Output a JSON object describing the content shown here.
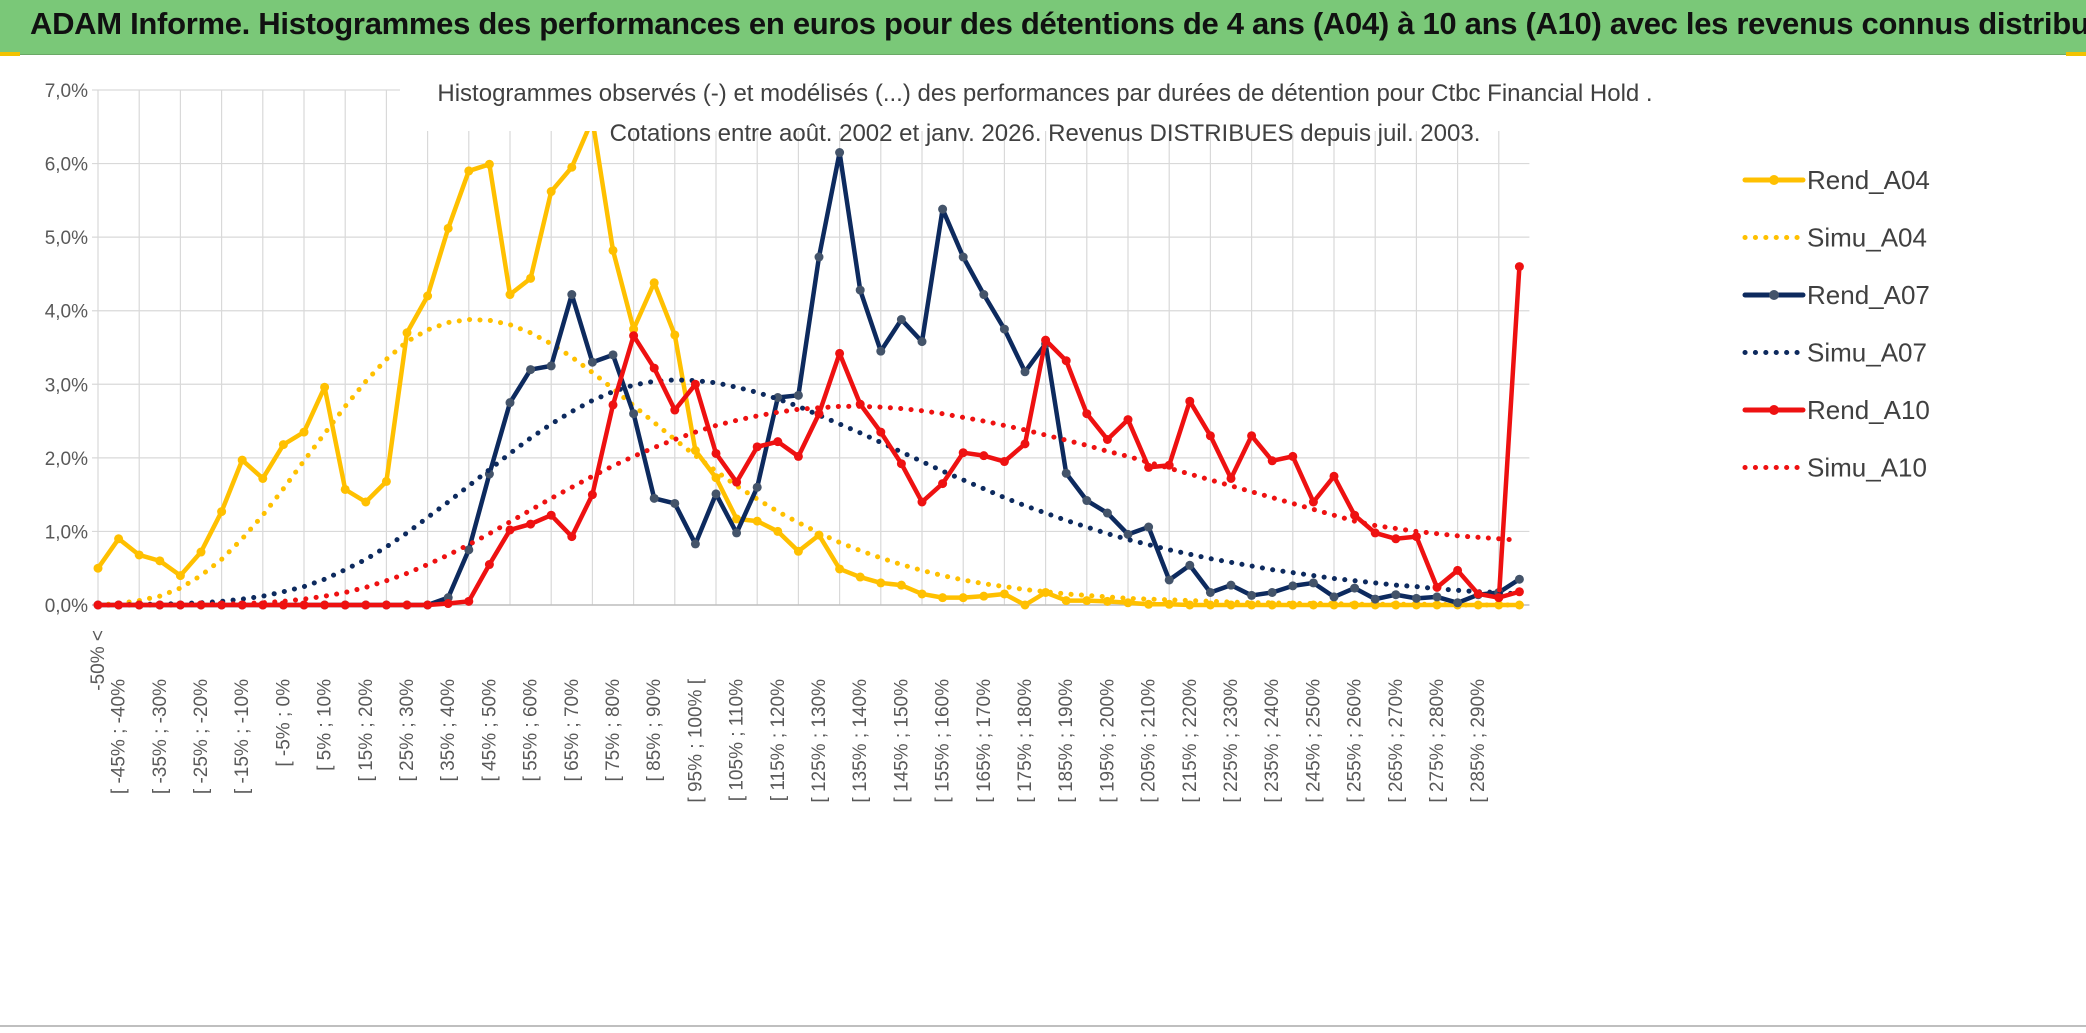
{
  "banner": {
    "title": "ADAM Informe. Histogrammes des performances en euros pour des détentions de 4 ans (A04) à 10 ans (A10) avec les revenus connus distribués"
  },
  "chart_data": {
    "type": "line",
    "title_line1": "Histogrammes observés (-) et modélisés (...) des performances par durées de détention pour Ctbc Financial Hold .",
    "title_line2": "Cotations entre août. 2002 et janv. 2026. Revenus DISTRIBUES depuis juil. 2003.",
    "ylim": [
      0,
      7
    ],
    "yticks": [
      "0,0%",
      "1,0%",
      "2,0%",
      "3,0%",
      "4,0%",
      "5,0%",
      "6,0%",
      "7,0%"
    ],
    "xtick_labels": [
      "-50% <",
      "[ -45% ; -40%",
      "[ -35% ; -30%",
      "[ -25% ; -20%",
      "[ -15% ; -10%",
      "[ -5% ; 0%",
      "[ 5% ; 10%",
      "[ 15% ; 20%",
      "[ 25% ; 30%",
      "[ 35% ; 40%",
      "[ 45% ; 50%",
      "[ 55% ; 60%",
      "[ 65% ; 70%",
      "[ 75% ; 80%",
      "[ 85% ; 90%",
      "[ 95% ; 100% [",
      "[ 105% ; 110%",
      "[ 115% ; 120%",
      "[ 125% ; 130%",
      "[ 135% ; 140%",
      "[ 145% ; 150%",
      "[ 155% ; 160%",
      "[ 165% ; 170%",
      "[ 175% ; 180%",
      "[ 185% ; 190%",
      "[ 195% ; 200%",
      "[ 205% ; 210%",
      "[ 215% ; 220%",
      "[ 225% ; 230%",
      "[ 235% ; 240%",
      "[ 245% ; 250%",
      "[ 255% ; 260%",
      "[ 265% ; 270%",
      "[ 275% ; 280%",
      "[ 285% ; 290%"
    ],
    "n_points": 70,
    "series": [
      {
        "name": "Rend_A04",
        "color": "#FFC000",
        "style": "solid",
        "markers": true,
        "values": [
          0.5,
          0.9,
          0.68,
          0.6,
          0.4,
          0.72,
          1.27,
          1.97,
          1.72,
          2.18,
          2.35,
          2.96,
          1.57,
          1.4,
          1.68,
          3.7,
          4.2,
          5.12,
          5.9,
          5.99,
          4.22,
          4.44,
          5.62,
          5.95,
          6.6,
          4.82,
          3.75,
          4.38,
          3.67,
          2.1,
          1.73,
          1.17,
          1.14,
          1.0,
          0.73,
          0.95,
          0.49,
          0.38,
          0.3,
          0.27,
          0.15,
          0.1,
          0.1,
          0.12,
          0.15,
          0.0,
          0.17,
          0.06,
          0.06,
          0.05,
          0.03,
          0.01,
          0.01,
          0.0,
          0.0,
          0.0,
          0.0,
          0.0,
          0.0,
          0.0,
          0.0,
          0.0,
          0.0,
          0.0,
          0.0,
          0.0,
          0.0,
          0.0,
          0.0,
          0.0
        ]
      },
      {
        "name": "Simu_A04",
        "color": "#FFC000",
        "style": "dotted",
        "markers": false,
        "values": [
          0.0,
          0.02,
          0.06,
          0.12,
          0.23,
          0.4,
          0.62,
          0.9,
          1.22,
          1.58,
          1.96,
          2.33,
          2.7,
          3.04,
          3.34,
          3.58,
          3.74,
          3.84,
          3.88,
          3.87,
          3.81,
          3.7,
          3.55,
          3.37,
          3.16,
          2.94,
          2.71,
          2.48,
          2.25,
          2.03,
          1.82,
          1.62,
          1.44,
          1.27,
          1.12,
          0.98,
          0.85,
          0.74,
          0.64,
          0.55,
          0.47,
          0.4,
          0.34,
          0.29,
          0.25,
          0.21,
          0.18,
          0.15,
          0.13,
          0.11,
          0.09,
          0.08,
          0.07,
          0.06,
          0.05,
          0.04,
          0.03,
          0.03,
          0.02,
          0.02,
          0.02,
          0.01,
          0.01,
          0.01,
          0.01,
          0.01,
          0.0,
          0.0,
          0.0,
          0.0
        ]
      },
      {
        "name": "Rend_A07",
        "color": "#0D2A5E",
        "style": "solid",
        "markers": true,
        "values": [
          0.0,
          0.0,
          0.0,
          0.0,
          0.0,
          0.0,
          0.0,
          0.0,
          0.0,
          0.0,
          0.0,
          0.0,
          0.0,
          0.0,
          0.0,
          0.0,
          0.0,
          0.1,
          0.75,
          1.78,
          2.75,
          3.2,
          3.25,
          4.22,
          3.3,
          3.4,
          2.6,
          1.45,
          1.38,
          0.83,
          1.51,
          0.98,
          1.6,
          2.82,
          2.85,
          4.73,
          6.15,
          4.28,
          3.45,
          3.88,
          3.58,
          5.38,
          4.73,
          4.22,
          3.75,
          3.17,
          3.55,
          1.79,
          1.42,
          1.25,
          0.96,
          1.06,
          0.34,
          0.54,
          0.17,
          0.27,
          0.13,
          0.17,
          0.26,
          0.3,
          0.11,
          0.23,
          0.08,
          0.14,
          0.09,
          0.11,
          0.03,
          0.14,
          0.17,
          0.35
        ]
      },
      {
        "name": "Simu_A07",
        "color": "#0D2A5E",
        "style": "dotted",
        "markers": false,
        "values": [
          0.0,
          0.0,
          0.01,
          0.01,
          0.02,
          0.03,
          0.05,
          0.08,
          0.12,
          0.18,
          0.25,
          0.35,
          0.48,
          0.62,
          0.79,
          0.98,
          1.19,
          1.4,
          1.62,
          1.84,
          2.06,
          2.27,
          2.46,
          2.63,
          2.78,
          2.9,
          2.99,
          3.04,
          3.06,
          3.05,
          3.02,
          2.96,
          2.89,
          2.8,
          2.7,
          2.58,
          2.46,
          2.34,
          2.21,
          2.08,
          1.95,
          1.82,
          1.7,
          1.58,
          1.46,
          1.35,
          1.25,
          1.15,
          1.06,
          0.97,
          0.89,
          0.82,
          0.75,
          0.69,
          0.63,
          0.58,
          0.53,
          0.48,
          0.44,
          0.4,
          0.36,
          0.33,
          0.3,
          0.27,
          0.25,
          0.22,
          0.2,
          0.18,
          0.17,
          0.15
        ]
      },
      {
        "name": "Rend_A10",
        "color": "#EE1111",
        "style": "solid",
        "markers": true,
        "values": [
          0.0,
          0.0,
          0.0,
          0.0,
          0.0,
          0.0,
          0.0,
          0.0,
          0.0,
          0.0,
          0.0,
          0.0,
          0.0,
          0.0,
          0.0,
          0.0,
          0.0,
          0.02,
          0.05,
          0.55,
          1.02,
          1.1,
          1.22,
          0.93,
          1.5,
          2.72,
          3.66,
          3.22,
          2.65,
          3.0,
          2.06,
          1.67,
          2.15,
          2.22,
          2.02,
          2.6,
          3.42,
          2.73,
          2.35,
          1.92,
          1.4,
          1.65,
          2.07,
          2.03,
          1.95,
          2.19,
          3.6,
          3.32,
          2.6,
          2.25,
          2.52,
          1.87,
          1.9,
          2.77,
          2.3,
          1.72,
          2.3,
          1.96,
          2.02,
          1.4,
          1.75,
          1.22,
          0.98,
          0.9,
          0.93,
          0.24,
          0.47,
          0.15,
          0.1,
          0.18
        ]
      },
      {
        "name": "Simu_A10",
        "color": "#EE1111",
        "style": "dotted",
        "markers": false,
        "values": [
          0.0,
          0.0,
          0.0,
          0.0,
          0.0,
          0.01,
          0.01,
          0.02,
          0.03,
          0.05,
          0.08,
          0.12,
          0.17,
          0.24,
          0.33,
          0.43,
          0.55,
          0.68,
          0.82,
          0.97,
          1.13,
          1.29,
          1.45,
          1.6,
          1.75,
          1.89,
          2.02,
          2.14,
          2.25,
          2.35,
          2.44,
          2.51,
          2.57,
          2.62,
          2.66,
          2.68,
          2.7,
          2.7,
          2.69,
          2.67,
          2.64,
          2.6,
          2.55,
          2.5,
          2.44,
          2.38,
          2.31,
          2.24,
          2.17,
          2.09,
          2.02,
          1.94,
          1.86,
          1.78,
          1.7,
          1.62,
          1.54,
          1.46,
          1.38,
          1.3,
          1.22,
          1.14,
          1.08,
          1.04,
          1.0,
          0.97,
          0.94,
          0.92,
          0.9,
          0.88
        ]
      }
    ],
    "a10_final_jump": [
      0.2,
      4.6
    ],
    "legend": [
      "Rend_A04",
      "Simu_A04",
      "Rend_A07",
      "Simu_A07",
      "Rend_A10",
      "Simu_A10"
    ],
    "legend_position": "right"
  }
}
